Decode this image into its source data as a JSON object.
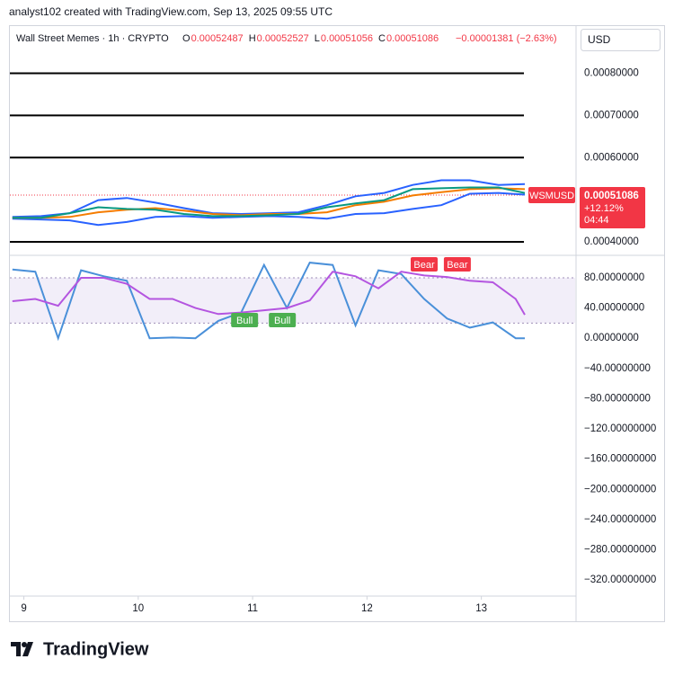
{
  "header": {
    "credit": "analyst102 created with TradingView.com, Sep 13, 2025 09:55 UTC",
    "instrument": "Wall Street Memes · 1h · CRYPTO",
    "ohlc": [
      {
        "label": "O",
        "value": "0.00052487"
      },
      {
        "label": "H",
        "value": "0.00052527"
      },
      {
        "label": "L",
        "value": "0.00051056"
      },
      {
        "label": "C",
        "value": "0.00051086"
      }
    ],
    "change": "−0.00001381 (−2.63%)",
    "currency": "USD"
  },
  "footer": {
    "brand": "TradingView"
  },
  "chart_data": [
    {
      "type": "line",
      "x": [
        8.9,
        9.15,
        9.4,
        9.65,
        9.9,
        10.15,
        10.4,
        10.65,
        10.9,
        11.15,
        11.4,
        11.65,
        11.9,
        12.15,
        12.4,
        12.65,
        12.9,
        13.15,
        13.38
      ],
      "xlim": [
        8.87,
        13.82
      ],
      "xticks": [
        9,
        10,
        11,
        12,
        13
      ],
      "ylim": [
        0.00037,
        0.00091
      ],
      "yticks": [
        {
          "value": 0.0004,
          "label": "0.00040000"
        },
        {
          "value": 0.0006,
          "label": "0.00060000"
        },
        {
          "value": 0.0007,
          "label": "0.00070000"
        },
        {
          "value": 0.0008,
          "label": "0.00080000"
        }
      ],
      "grid": true,
      "series": [
        {
          "color": "#2962ff",
          "values": [
            0.000459,
            0.000461,
            0.000468,
            0.000499,
            0.000504,
            0.000493,
            0.00048,
            0.000468,
            0.000466,
            0.000468,
            0.00047,
            0.000487,
            0.000508,
            0.000516,
            0.000535,
            0.000546,
            0.000546,
            0.000535,
            0.000537
          ]
        },
        {
          "color": "#2962ff",
          "values": [
            0.000455,
            0.000453,
            0.000451,
            0.00044,
            0.000447,
            0.000459,
            0.000461,
            0.000457,
            0.000459,
            0.000461,
            0.000459,
            0.000455,
            0.000466,
            0.000468,
            0.000478,
            0.000487,
            0.000514,
            0.000516,
            0.000512
          ]
        },
        {
          "color": "#f57c00",
          "values": [
            0.000457,
            0.000457,
            0.000459,
            0.00047,
            0.000476,
            0.00048,
            0.000474,
            0.000466,
            0.000463,
            0.000466,
            0.000466,
            0.00047,
            0.000487,
            0.000495,
            0.00051,
            0.000518,
            0.000525,
            0.000527,
            0.000525
          ]
        },
        {
          "color": "#089981",
          "values": [
            0.000457,
            0.000457,
            0.000468,
            0.000482,
            0.000478,
            0.000476,
            0.000466,
            0.000461,
            0.000461,
            0.000463,
            0.000466,
            0.000482,
            0.000491,
            0.000499,
            0.000525,
            0.000527,
            0.000529,
            0.000529,
            0.000516
          ]
        }
      ],
      "last_price": {
        "value": 0.00051086,
        "label": "0.00051086",
        "symbol": "WSMUSD",
        "change": "+12.12%",
        "countdown": "04:44",
        "color": "#f23645"
      }
    },
    {
      "type": "line",
      "x": [
        8.9,
        9.1,
        9.3,
        9.5,
        9.7,
        9.9,
        10.1,
        10.3,
        10.5,
        10.7,
        10.9,
        11.1,
        11.3,
        11.5,
        11.7,
        11.9,
        12.1,
        12.3,
        12.5,
        12.7,
        12.9,
        13.1,
        13.3,
        13.38
      ],
      "xlim": [
        8.87,
        13.82
      ],
      "ylim": [
        -340,
        108.5
      ],
      "yticks": [
        {
          "value": 80,
          "label": "80.00000000"
        },
        {
          "value": 40,
          "label": "40.00000000"
        },
        {
          "value": 0,
          "label": "0.00000000"
        },
        {
          "value": -40,
          "label": "−40.00000000"
        },
        {
          "value": -80,
          "label": "−80.00000000"
        },
        {
          "value": -120,
          "label": "−120.00000000"
        },
        {
          "value": -160,
          "label": "−160.00000000"
        },
        {
          "value": -200,
          "label": "−200.00000000"
        },
        {
          "value": -240,
          "label": "−240.00000000"
        },
        {
          "value": -280,
          "label": "−280.00000000"
        },
        {
          "value": -320,
          "label": "−320.00000000"
        }
      ],
      "band": [
        20,
        80
      ],
      "series": [
        {
          "color": "#4a90d9",
          "values": [
            91,
            88,
            0,
            90,
            82,
            76,
            0,
            1,
            0,
            23,
            34,
            97,
            40,
            100,
            97,
            17,
            90,
            85,
            52,
            26,
            14,
            21,
            0,
            0
          ]
        },
        {
          "color": "#b455e0",
          "values": [
            49,
            52,
            43,
            80,
            80,
            72,
            52,
            52,
            40,
            32,
            34,
            37,
            40,
            50,
            88,
            82,
            66,
            88,
            83,
            81,
            76,
            74,
            52,
            31
          ]
        }
      ],
      "annotations": [
        {
          "text": "Bull",
          "x": 10.93,
          "color": "#4caf50"
        },
        {
          "text": "Bull",
          "x": 11.26,
          "color": "#4caf50"
        },
        {
          "text": "Bear",
          "x": 12.5,
          "color": "#f23645"
        },
        {
          "text": "Bear",
          "x": 12.79,
          "color": "#f23645"
        }
      ]
    }
  ]
}
